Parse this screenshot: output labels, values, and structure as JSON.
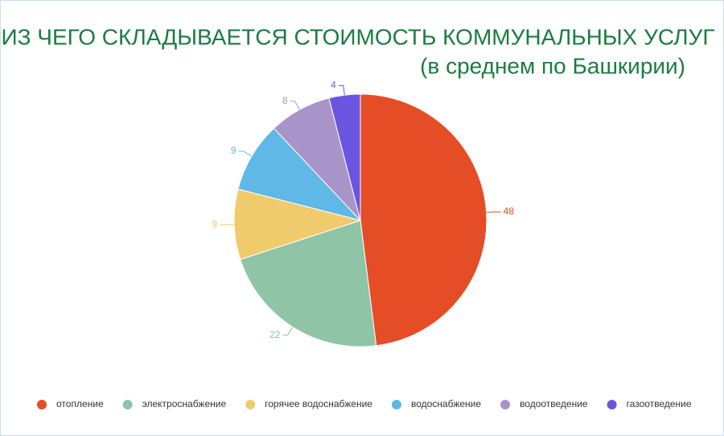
{
  "chart_data": {
    "type": "pie",
    "title": "ИЗ ЧЕГО СКЛАДЫВАЕТСЯ СТОИМОСТЬ КОММУНАЛЬНЫХ УСЛУГ",
    "subtitle": "(в среднем по Башкирии)",
    "categories": [
      "отопление",
      "электроснабжение",
      "горячее водоснабжение",
      "водоснабжение",
      "водоотведение",
      "газоотведение"
    ],
    "values": [
      48,
      22,
      9,
      9,
      8,
      4
    ],
    "colors": [
      "#e44d26",
      "#8fc4a6",
      "#f0cb6b",
      "#5fb8e5",
      "#a994c9",
      "#6b55e0"
    ],
    "legend": "bottom"
  }
}
